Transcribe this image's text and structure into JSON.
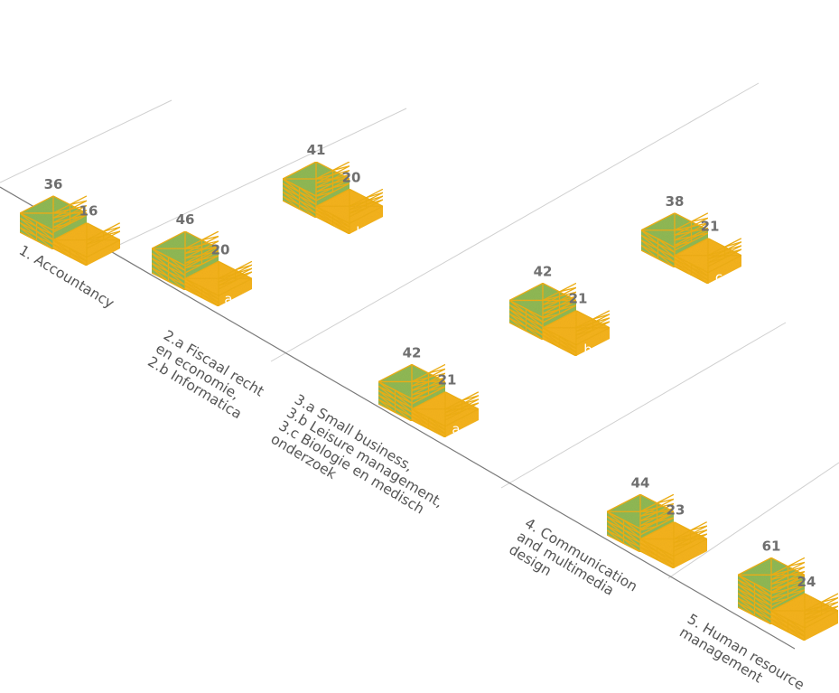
{
  "chart_data": {
    "type": "bar",
    "style": "isometric-stacked-columns",
    "title": "",
    "xlabel": "",
    "ylabel": "",
    "colors": {
      "total": "#92bb57",
      "sub": "#f8b522",
      "grid_lines": "#f2b11a",
      "value_text": "#6f6f6f"
    },
    "categories": [
      {
        "label_lines": [
          "1. Accountancy"
        ]
      },
      {
        "label_lines": [
          "2.a Fiscaal recht",
          "en economie,",
          "2.b Informatica"
        ]
      },
      {
        "label_lines": [
          "3.a Small business,",
          "3.b Leisure management,",
          "3.c Biologie en medisch",
          "onderzoek"
        ]
      },
      {
        "label_lines": [
          "4. Communication",
          "and multimedia",
          "design"
        ]
      },
      {
        "label_lines": [
          "5. Human resource",
          "management"
        ]
      }
    ],
    "bars": [
      {
        "category": 0,
        "sub": "",
        "total": 36,
        "part": 16
      },
      {
        "category": 1,
        "sub": "a",
        "total": 46,
        "part": 20
      },
      {
        "category": 1,
        "sub": "b",
        "total": 41,
        "part": 20
      },
      {
        "category": 2,
        "sub": "a",
        "total": 42,
        "part": 21
      },
      {
        "category": 2,
        "sub": "b",
        "total": 42,
        "part": 21
      },
      {
        "category": 2,
        "sub": "c",
        "total": 38,
        "part": 21
      },
      {
        "category": 3,
        "sub": "",
        "total": 44,
        "part": 23
      },
      {
        "category": 4,
        "sub": "",
        "total": 61,
        "part": 24
      }
    ]
  }
}
